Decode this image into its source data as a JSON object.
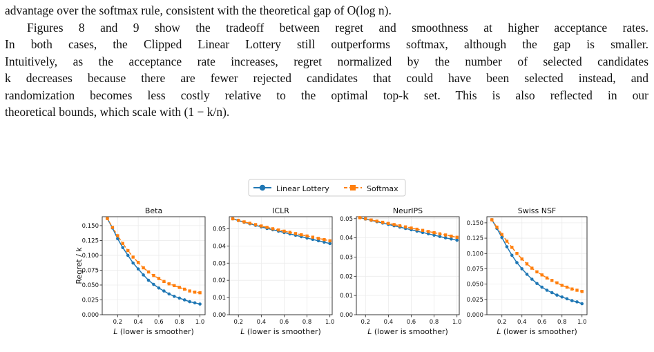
{
  "text": {
    "line1": "advantage over the softmax rule, consistent with the theoretical gap of O(log n).",
    "line2": "Figures 8 and 9 show the tradeoff between regret and smoothness at higher acceptance rates.",
    "line3": "In both cases, the Clipped Linear Lottery still outperforms softmax, although the gap is smaller.",
    "line4": "Intuitively, as the acceptance rate increases, regret normalized by the number of selected candidates",
    "line5": "k decreases because there are fewer rejected candidates that could have been selected instead, and",
    "line6": "randomization becomes less costly relative to the optimal top-k set. This is also reflected in our",
    "line7": "theoretical bounds, which scale with (1 − k/n)."
  },
  "legend": {
    "linear": "Linear Lottery",
    "softmax": "Softmax"
  },
  "colors": {
    "linear": "#1f77b4",
    "softmax": "#ff7f0e"
  },
  "ylabel": "Regret / k",
  "chart_data": [
    {
      "type": "line",
      "title": "Beta",
      "xlabel": "L (lower is smoother)",
      "xlim": [
        0.05,
        1.05
      ],
      "ylim": [
        0,
        0.165
      ],
      "xticks": [
        0.2,
        0.4,
        0.6,
        0.8,
        1.0
      ],
      "yticks": [
        0,
        0.025,
        0.05,
        0.075,
        0.1,
        0.125,
        0.15
      ],
      "yticklabels": [
        "0.000",
        "0.025",
        "0.050",
        "0.075",
        "0.100",
        "0.125",
        "0.150"
      ],
      "x": [
        0.1,
        0.15,
        0.2,
        0.25,
        0.3,
        0.35,
        0.4,
        0.45,
        0.5,
        0.55,
        0.6,
        0.65,
        0.7,
        0.75,
        0.8,
        0.85,
        0.9,
        0.95,
        1.0
      ],
      "series": [
        {
          "name": "Linear Lottery",
          "values": [
            0.162,
            0.146,
            0.128,
            0.113,
            0.1,
            0.087,
            0.077,
            0.067,
            0.058,
            0.051,
            0.045,
            0.04,
            0.035,
            0.031,
            0.028,
            0.025,
            0.022,
            0.02,
            0.018
          ]
        },
        {
          "name": "Softmax",
          "values": [
            0.162,
            0.147,
            0.133,
            0.12,
            0.108,
            0.097,
            0.088,
            0.079,
            0.072,
            0.066,
            0.061,
            0.056,
            0.052,
            0.049,
            0.046,
            0.043,
            0.04,
            0.038,
            0.037
          ]
        }
      ]
    },
    {
      "type": "line",
      "title": "ICLR",
      "xlabel": "L (lower is smoother)",
      "xlim": [
        0.12,
        1.02
      ],
      "ylim": [
        0,
        0.057
      ],
      "xticks": [
        0.2,
        0.4,
        0.6,
        0.8,
        1.0
      ],
      "yticks": [
        0,
        0.01,
        0.02,
        0.03,
        0.04,
        0.05
      ],
      "yticklabels": [
        "0.00",
        "0.01",
        "0.02",
        "0.03",
        "0.04",
        "0.05"
      ],
      "x": [
        0.15,
        0.2,
        0.25,
        0.3,
        0.35,
        0.4,
        0.45,
        0.5,
        0.55,
        0.6,
        0.65,
        0.7,
        0.75,
        0.8,
        0.85,
        0.9,
        0.95,
        1.0
      ],
      "series": [
        {
          "name": "Linear Lottery",
          "values": [
            0.0558,
            0.0548,
            0.0538,
            0.0529,
            0.052,
            0.0511,
            0.0502,
            0.0494,
            0.0486,
            0.0478,
            0.047,
            0.0462,
            0.0454,
            0.0446,
            0.0438,
            0.043,
            0.0422,
            0.0414
          ]
        },
        {
          "name": "Softmax",
          "values": [
            0.0558,
            0.0549,
            0.054,
            0.0532,
            0.0524,
            0.0516,
            0.0508,
            0.05,
            0.0493,
            0.0486,
            0.0479,
            0.0472,
            0.0465,
            0.0458,
            0.0451,
            0.0444,
            0.0437,
            0.043
          ]
        }
      ]
    },
    {
      "type": "line",
      "title": "NeurIPS",
      "xlabel": "L (lower is smoother)",
      "xlim": [
        0.12,
        1.02
      ],
      "ylim": [
        0,
        0.051
      ],
      "xticks": [
        0.2,
        0.4,
        0.6,
        0.8,
        1.0
      ],
      "yticks": [
        0,
        0.01,
        0.02,
        0.03,
        0.04,
        0.05
      ],
      "yticklabels": [
        "0.00",
        "0.01",
        "0.02",
        "0.03",
        "0.04",
        "0.05"
      ],
      "x": [
        0.15,
        0.2,
        0.25,
        0.3,
        0.35,
        0.4,
        0.45,
        0.5,
        0.55,
        0.6,
        0.65,
        0.7,
        0.75,
        0.8,
        0.85,
        0.9,
        0.95,
        1.0
      ],
      "series": [
        {
          "name": "Linear Lottery",
          "values": [
            0.0505,
            0.0498,
            0.0491,
            0.0484,
            0.0477,
            0.047,
            0.0463,
            0.0456,
            0.0449,
            0.0442,
            0.0435,
            0.0428,
            0.0421,
            0.0414,
            0.0407,
            0.04,
            0.0394,
            0.0388
          ]
        },
        {
          "name": "Softmax",
          "values": [
            0.0505,
            0.0499,
            0.0493,
            0.0487,
            0.0481,
            0.0475,
            0.0469,
            0.0463,
            0.0457,
            0.0451,
            0.0445,
            0.0439,
            0.0433,
            0.0427,
            0.0421,
            0.0415,
            0.0409,
            0.0403
          ]
        }
      ]
    },
    {
      "type": "line",
      "title": "Swiss NSF",
      "xlabel": "L (lower is smoother)",
      "xlim": [
        0.05,
        1.05
      ],
      "ylim": [
        0,
        0.16
      ],
      "xticks": [
        0.2,
        0.4,
        0.6,
        0.8,
        1.0
      ],
      "yticks": [
        0,
        0.025,
        0.05,
        0.075,
        0.1,
        0.125,
        0.15
      ],
      "yticklabels": [
        "0.000",
        "0.025",
        "0.050",
        "0.075",
        "0.100",
        "0.125",
        "0.150"
      ],
      "x": [
        0.1,
        0.15,
        0.2,
        0.25,
        0.3,
        0.35,
        0.4,
        0.45,
        0.5,
        0.55,
        0.6,
        0.65,
        0.7,
        0.75,
        0.8,
        0.85,
        0.9,
        0.95,
        1.0
      ],
      "series": [
        {
          "name": "Linear Lottery",
          "values": [
            0.155,
            0.141,
            0.126,
            0.111,
            0.097,
            0.085,
            0.075,
            0.066,
            0.058,
            0.051,
            0.045,
            0.04,
            0.036,
            0.032,
            0.029,
            0.026,
            0.023,
            0.021,
            0.018
          ]
        },
        {
          "name": "Softmax",
          "values": [
            0.155,
            0.143,
            0.131,
            0.12,
            0.11,
            0.1,
            0.091,
            0.083,
            0.076,
            0.07,
            0.065,
            0.06,
            0.056,
            0.052,
            0.048,
            0.045,
            0.042,
            0.04,
            0.038
          ]
        }
      ]
    }
  ]
}
